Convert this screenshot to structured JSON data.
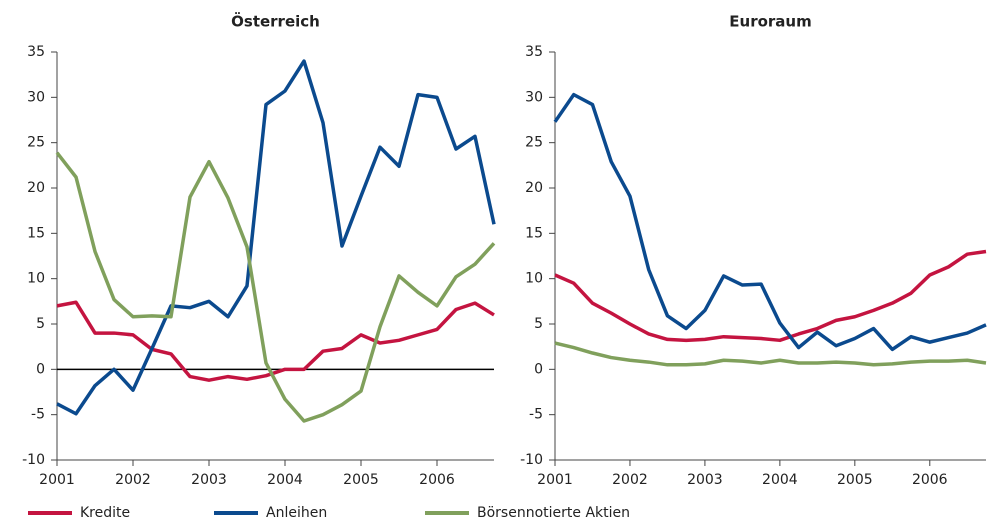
{
  "chart_data": [
    {
      "type": "line",
      "title": "Österreich",
      "x": [
        2001,
        2001.25,
        2001.5,
        2001.75,
        2002,
        2002.25,
        2002.5,
        2002.75,
        2003,
        2003.25,
        2003.5,
        2003.75,
        2004,
        2004.25,
        2004.5,
        2004.75,
        2005,
        2005.25,
        2005.5,
        2005.75,
        2006,
        2006.25,
        2006.5,
        2006.75
      ],
      "xlim": [
        2001,
        2006.75
      ],
      "xticks": [
        2001,
        2002,
        2003,
        2004,
        2005,
        2006
      ],
      "ylim": [
        -10,
        35
      ],
      "yticks": [
        -10,
        -5,
        0,
        5,
        10,
        15,
        20,
        25,
        30,
        35
      ],
      "zero_line": true,
      "series": [
        {
          "name": "Kredite",
          "color": "#c41440",
          "values": [
            7.0,
            7.4,
            4.0,
            4.0,
            3.8,
            2.2,
            1.7,
            -0.8,
            -1.2,
            -0.8,
            -1.1,
            -0.7,
            0,
            0,
            2.0,
            2.3,
            3.8,
            2.9,
            3.2,
            3.8,
            4.4,
            6.6,
            7.3,
            6.0
          ]
        },
        {
          "name": "Anleihen",
          "color": "#0b4a8e",
          "values": [
            -3.8,
            -4.9,
            -1.8,
            0,
            -2.3,
            2.3,
            7.0,
            6.8,
            7.5,
            5.8,
            9.2,
            29.2,
            30.7,
            34.0,
            27.2,
            13.6,
            19.1,
            24.5,
            22.4,
            30.3,
            30.0,
            24.3,
            25.7,
            16.0
          ]
        },
        {
          "name": "Börsennotierte Aktien",
          "color": "#80a05c",
          "values": [
            23.9,
            21.2,
            13.0,
            7.7,
            5.8,
            5.9,
            5.8,
            19.0,
            22.9,
            18.9,
            13.5,
            0.7,
            -3.3,
            -5.7,
            -5.0,
            -3.9,
            -2.4,
            4.7,
            10.3,
            8.5,
            7.0,
            10.2,
            11.6,
            13.9
          ]
        }
      ]
    },
    {
      "type": "line",
      "title": "Euroraum",
      "x": [
        2001,
        2001.25,
        2001.5,
        2001.75,
        2002,
        2002.25,
        2002.5,
        2002.75,
        2003,
        2003.25,
        2003.5,
        2003.75,
        2004,
        2004.25,
        2004.5,
        2004.75,
        2005,
        2005.25,
        2005.5,
        2005.75,
        2006,
        2006.25,
        2006.5,
        2006.75
      ],
      "xlim": [
        2001,
        2006.75
      ],
      "xticks": [
        2001,
        2002,
        2003,
        2004,
        2005,
        2006
      ],
      "ylim": [
        -10,
        35
      ],
      "yticks": [
        -10,
        -5,
        0,
        5,
        10,
        15,
        20,
        25,
        30,
        35
      ],
      "zero_line": false,
      "series": [
        {
          "name": "Kredite",
          "color": "#c41440",
          "values": [
            10.4,
            9.5,
            7.3,
            6.2,
            5.0,
            3.9,
            3.3,
            3.2,
            3.3,
            3.6,
            3.5,
            3.4,
            3.2,
            3.9,
            4.5,
            5.4,
            5.8,
            6.5,
            7.3,
            8.4,
            10.4,
            11.3,
            12.7,
            13.0
          ]
        },
        {
          "name": "Anleihen",
          "color": "#0b4a8e",
          "values": [
            27.3,
            30.3,
            29.2,
            22.9,
            19.1,
            11.0,
            5.9,
            4.5,
            6.5,
            10.3,
            9.3,
            9.4,
            5.1,
            2.4,
            4.1,
            2.6,
            3.4,
            4.5,
            2.2,
            3.6,
            3.0,
            3.5,
            4.0,
            4.9
          ]
        },
        {
          "name": "Börsennotierte Aktien",
          "color": "#80a05c",
          "values": [
            2.9,
            2.4,
            1.8,
            1.3,
            1.0,
            0.8,
            0.5,
            0.5,
            0.6,
            1.0,
            0.9,
            0.7,
            1.0,
            0.7,
            0.7,
            0.8,
            0.7,
            0.5,
            0.6,
            0.8,
            0.9,
            0.9,
            1.0,
            0.7
          ]
        }
      ]
    }
  ]
}
